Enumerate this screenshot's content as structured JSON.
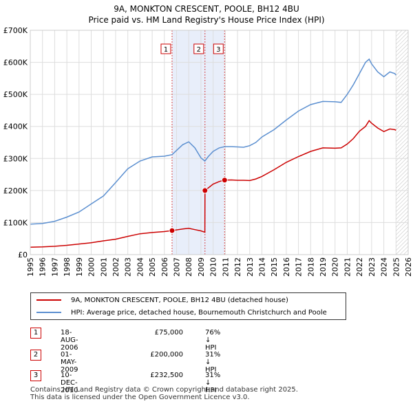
{
  "title_line1": "9A, MONKTON CRESCENT, POOLE, BH12 4BU",
  "title_line2": "Price paid vs. HM Land Registry's House Price Index (HPI)",
  "chart_data": {
    "type": "line",
    "title": "9A, MONKTON CRESCENT, POOLE, BH12 4BU — Price paid vs. HM Land Registry's House Price Index (HPI)",
    "xlim": [
      1995,
      2026
    ],
    "ylim": [
      0,
      700000
    ],
    "y_ticks": [
      0,
      100000,
      200000,
      300000,
      400000,
      500000,
      600000,
      700000
    ],
    "y_tick_labels": [
      "£0",
      "£100K",
      "£200K",
      "£300K",
      "£400K",
      "£500K",
      "£600K",
      "£700K"
    ],
    "x_ticks": [
      1995,
      1996,
      1997,
      1998,
      1999,
      2000,
      2001,
      2002,
      2003,
      2004,
      2005,
      2006,
      2007,
      2008,
      2009,
      2010,
      2011,
      2012,
      2013,
      2014,
      2015,
      2016,
      2017,
      2018,
      2019,
      2020,
      2021,
      2022,
      2023,
      2024,
      2025,
      2026
    ],
    "series": [
      {
        "name": "9A, MONKTON CRESCENT, POOLE, BH12 4BU (detached house)",
        "color": "#cc0000",
        "x": [
          1995.0,
          1996.0,
          1997.0,
          1998.0,
          1999.0,
          2000.0,
          2001.0,
          2002.0,
          2003.0,
          2004.0,
          2005.0,
          2006.0,
          2006.63,
          2007.5,
          2008.0,
          2008.5,
          2009.0,
          2009.32,
          2009.33,
          2010.0,
          2010.5,
          2010.94,
          2011.5,
          2012.0,
          2012.5,
          2013.0,
          2013.5,
          2014.0,
          2015.0,
          2016.0,
          2017.0,
          2018.0,
          2019.0,
          2020.0,
          2020.5,
          2021.0,
          2021.5,
          2022.0,
          2022.5,
          2022.8,
          2023.0,
          2023.5,
          2024.0,
          2024.5,
          2024.9,
          2025.0
        ],
        "y": [
          23000,
          24000,
          26000,
          29000,
          33000,
          37000,
          43000,
          48000,
          57000,
          65000,
          69000,
          72000,
          75000,
          80000,
          82000,
          78000,
          74000,
          70000,
          200000,
          220000,
          228000,
          232500,
          233000,
          232000,
          232000,
          231000,
          236000,
          244000,
          265000,
          288000,
          306000,
          322000,
          333000,
          332000,
          333000,
          345000,
          362000,
          385000,
          400000,
          418000,
          410000,
          395000,
          384000,
          392000,
          390000,
          388000
        ]
      },
      {
        "name": "HPI: Average price, detached house, Bournemouth Christchurch and Poole",
        "color": "#5b8fd0",
        "x": [
          1995.0,
          1996.0,
          1997.0,
          1998.0,
          1999.0,
          2000.0,
          2001.0,
          2002.0,
          2003.0,
          2004.0,
          2005.0,
          2006.0,
          2006.63,
          2007.0,
          2007.5,
          2008.0,
          2008.5,
          2009.0,
          2009.32,
          2009.6,
          2010.0,
          2010.5,
          2010.94,
          2011.5,
          2012.0,
          2012.5,
          2013.0,
          2013.5,
          2014.0,
          2015.0,
          2016.0,
          2017.0,
          2018.0,
          2019.0,
          2020.0,
          2020.5,
          2021.0,
          2021.5,
          2022.0,
          2022.5,
          2022.8,
          2023.0,
          2023.5,
          2024.0,
          2024.5,
          2024.9,
          2025.0
        ],
        "y": [
          95000,
          97000,
          104000,
          117000,
          133000,
          158000,
          183000,
          225000,
          268000,
          292000,
          305000,
          307000,
          312000,
          325000,
          343000,
          352000,
          333000,
          302000,
          292000,
          306000,
          322000,
          333000,
          337000,
          337000,
          336000,
          335000,
          340000,
          350000,
          367000,
          390000,
          420000,
          448000,
          468000,
          478000,
          477000,
          475000,
          500000,
          530000,
          565000,
          600000,
          610000,
          595000,
          570000,
          555000,
          570000,
          565000,
          560000
        ]
      }
    ],
    "sales": [
      {
        "label": "1",
        "x": 2006.63,
        "y": 75000
      },
      {
        "label": "2",
        "x": 2009.33,
        "y": 200000
      },
      {
        "label": "3",
        "x": 2010.94,
        "y": 232500
      }
    ],
    "shaded_range": [
      2006.63,
      2010.94
    ],
    "forecast_from": 2025.0
  },
  "legend": {
    "red": "9A, MONKTON CRESCENT, POOLE, BH12 4BU (detached house)",
    "blue": "HPI: Average price, detached house, Bournemouth Christchurch and Poole"
  },
  "transactions": [
    {
      "num": "1",
      "date": "18-AUG-2006",
      "price": "£75,000",
      "hpi": "76% ↓ HPI"
    },
    {
      "num": "2",
      "date": "01-MAY-2009",
      "price": "£200,000",
      "hpi": "31% ↓ HPI"
    },
    {
      "num": "3",
      "date": "10-DEC-2010",
      "price": "£232,500",
      "hpi": "31% ↓ HPI"
    }
  ],
  "footer_line1": "Contains HM Land Registry data © Crown copyright and database right 2025.",
  "footer_line2": "This data is licensed under the Open Government Licence v3.0.",
  "colors": {
    "red": "#cc0000",
    "blue": "#5b8fd0",
    "shade": "#e8eefa"
  }
}
